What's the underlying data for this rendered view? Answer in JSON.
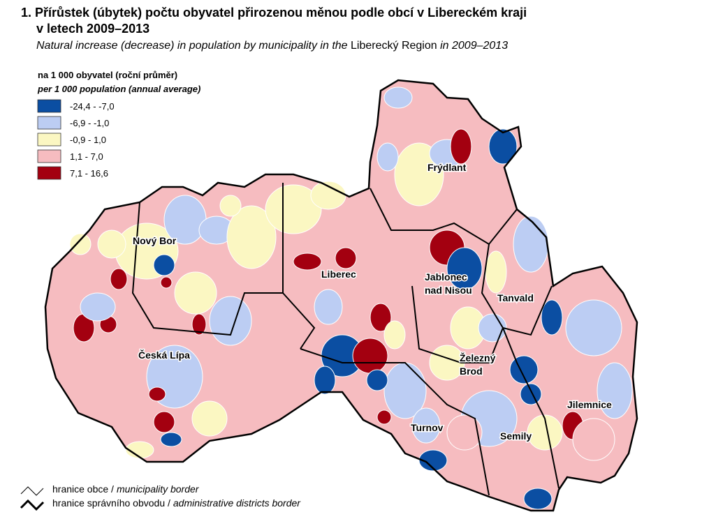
{
  "title": {
    "line1": "1. Přírůstek (úbytek) počtu obyvatel přirozenou měnou podle obcí v Libereckém kraji",
    "line2": "v letech 2009–2013"
  },
  "subtitle": {
    "part1": "Natural increase (decrease) in population by municipality in the",
    "part2": "Liberecký Region",
    "part3": "in 2009–2013"
  },
  "legend": {
    "title": "na 1 000 obyvatel (roční průměr)",
    "subtitle": "per 1 000 population (annual average)",
    "classes": [
      {
        "label": "-24,4 -  -7,0",
        "color": "#0b4ea2"
      },
      {
        "label": "-6,9 -  -1,0",
        "color": "#bccdf3"
      },
      {
        "label": "-0,9 -   1,0",
        "color": "#fbf7c2"
      },
      {
        "label": "1,1 -   7,0",
        "color": "#f6bcc0"
      },
      {
        "label": "7,1 - 16,6",
        "color": "#a30010"
      }
    ]
  },
  "towns": [
    {
      "lines": [
        "Nový Bor"
      ]
    },
    {
      "lines": [
        "Liberec"
      ]
    },
    {
      "lines": [
        "Frýdlant"
      ]
    },
    {
      "lines": [
        "Jablonec",
        "nad Nisou"
      ]
    },
    {
      "lines": [
        "Tanvald"
      ]
    },
    {
      "lines": [
        "Česká Lípa"
      ]
    },
    {
      "lines": [
        "Železný",
        "Brod"
      ]
    },
    {
      "lines": [
        "Jilemnice"
      ]
    },
    {
      "lines": [
        "Turnov"
      ]
    },
    {
      "lines": [
        "Semily"
      ]
    }
  ],
  "borders": [
    {
      "czech": "hranice obce /",
      "english": "municipality border"
    },
    {
      "czech": "hranice správního obvodu /",
      "english": "administrative districts border"
    }
  ]
}
